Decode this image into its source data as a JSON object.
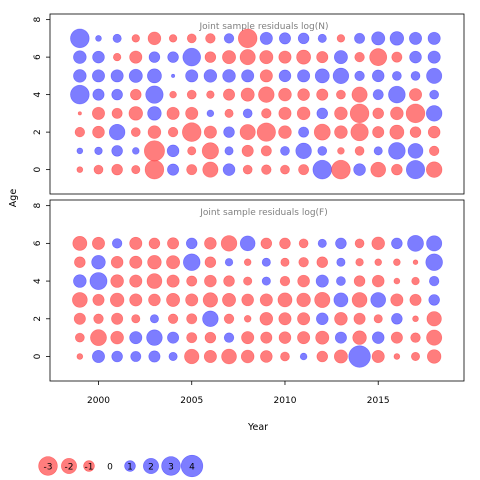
{
  "colors": {
    "negative": "#ff6666",
    "positive": "#6666ff",
    "negative_stroke": "#ff0000",
    "positive_stroke": "#0000ff"
  },
  "xlabel": "Year",
  "ylabel": "Age",
  "x_ticks": [
    "2000",
    "2005",
    "2010",
    "2015"
  ],
  "y_ticks": [
    "0",
    "2",
    "4",
    "6",
    "8"
  ],
  "legend": {
    "values": [
      -3,
      -2,
      -1,
      0,
      1,
      2,
      3,
      4
    ],
    "labels": [
      "-3",
      "-2",
      "-1",
      "0",
      "1",
      "2",
      "3",
      "4"
    ]
  },
  "chart_data": [
    {
      "type": "scatter",
      "title": "Joint sample residuals log(N)",
      "xlabel": "Year",
      "ylabel": "Age",
      "xlim": [
        1997.4,
        2019.6
      ],
      "ylim": [
        -1.3,
        8.3
      ],
      "x": [
        1999,
        2000,
        2001,
        2002,
        2003,
        2004,
        2005,
        2006,
        2007,
        2008,
        2009,
        2010,
        2011,
        2012,
        2013,
        2014,
        2015,
        2016,
        2017,
        2018
      ],
      "ages": [
        0,
        1,
        2,
        3,
        4,
        5,
        6,
        7
      ],
      "residuals_by_age": [
        [
          -0.3,
          -0.7,
          -1.0,
          -0.6,
          -3.0,
          1.1,
          -0.9,
          -2.0,
          1.2,
          -0.7,
          -0.8,
          -0.7,
          -0.9,
          3.0,
          -3.0,
          1.2,
          -1.9,
          -1.0,
          2.9,
          -2.1
        ],
        [
          0.3,
          0.5,
          1.0,
          0.4,
          -3.5,
          1.2,
          -0.6,
          -2.3,
          0.6,
          -1.1,
          -0.9,
          0.7,
          2.1,
          0.7,
          -0.4,
          -0.7,
          0.6,
          2.4,
          1.9,
          -0.8
        ],
        [
          -0.8,
          -1.2,
          2.1,
          -0.7,
          -1.4,
          -0.8,
          -3.0,
          -1.3,
          1.0,
          -2.0,
          -2.9,
          -1.4,
          0.9,
          -2.2,
          -1.4,
          -2.6,
          -1.1,
          -1.7,
          -1.0,
          -1.2
        ],
        [
          -0.1,
          -1.3,
          -0.9,
          -1.6,
          1.6,
          -1.3,
          -1.3,
          0.4,
          -0.6,
          0.7,
          -0.8,
          -1.3,
          -1.4,
          1.0,
          -1.4,
          -3.0,
          -1.0,
          -1.4,
          -3.0,
          2.1
        ],
        [
          3.0,
          1.1,
          1.0,
          -1.0,
          2.6,
          -0.4,
          -0.7,
          -0.5,
          -1.1,
          -1.5,
          -2.1,
          -1.4,
          -1.2,
          -1.1,
          -0.7,
          -2.0,
          0.9,
          2.4,
          -1.3,
          0.7
        ],
        [
          1.4,
          1.3,
          1.3,
          1.5,
          1.7,
          0.1,
          1.3,
          1.4,
          1.4,
          1.3,
          -1.3,
          1.2,
          1.3,
          1.7,
          2.1,
          0.8,
          1.2,
          0.7,
          0.7,
          2.0
        ],
        [
          1.4,
          1.2,
          -0.5,
          -1.3,
          1.0,
          1.0,
          2.7,
          -1.0,
          -1.5,
          -2.0,
          -1.5,
          -1.3,
          -1.7,
          -1.1,
          1.5,
          -0.8,
          -2.5,
          -0.9,
          1.2,
          1.3
        ],
        [
          3.0,
          0.3,
          0.6,
          -0.5,
          -1.4,
          -0.5,
          -0.7,
          -0.8,
          0.8,
          -3.0,
          1.3,
          1.1,
          1.0,
          0.6,
          -0.5,
          0.9,
          1.5,
          1.6,
          1.3,
          1.3
        ]
      ]
    },
    {
      "type": "scatter",
      "title": "Joint sample residuals log(F)",
      "xlabel": "Year",
      "ylabel": "Age",
      "xlim": [
        1997.4,
        2019.6
      ],
      "ylim": [
        -1.3,
        8.3
      ],
      "x": [
        1999,
        2000,
        2001,
        2002,
        2003,
        2004,
        2005,
        2006,
        2007,
        2008,
        2009,
        2010,
        2011,
        2012,
        2013,
        2014,
        2015,
        2016,
        2017,
        2018
      ],
      "ages": [
        0,
        1,
        2,
        3,
        4,
        5,
        6
      ],
      "residuals_by_age": [
        [
          -0.3,
          1.3,
          1.0,
          0.9,
          1.1,
          0.6,
          -1.8,
          -1.3,
          -1.9,
          -1.4,
          -1.2,
          -0.7,
          0.4,
          -1.0,
          -1.5,
          4.0,
          -1.3,
          -0.3,
          -0.6,
          -1.6
        ],
        [
          -0.7,
          -2.2,
          -1.4,
          1.3,
          2.1,
          1.1,
          -0.9,
          -1.0,
          0.8,
          -1.3,
          -1.1,
          -1.2,
          -1.3,
          -1.5,
          1.1,
          -1.6,
          1.2,
          -1.1,
          -0.8,
          -2.0
        ],
        [
          -1.1,
          -0.8,
          -1.1,
          -0.6,
          0.6,
          -0.8,
          -0.9,
          2.1,
          -0.8,
          -0.4,
          -1.4,
          -1.3,
          -1.3,
          1.2,
          -1.4,
          -1.1,
          -0.6,
          1.0,
          -0.3,
          -1.8
        ],
        [
          -1.9,
          -1.1,
          -1.6,
          -1.3,
          -1.2,
          -1.5,
          -1.3,
          -1.8,
          -1.5,
          -1.2,
          -1.3,
          -1.7,
          -1.6,
          -2.0,
          1.7,
          -1.9,
          1.9,
          -1.3,
          -1.1,
          1.0
        ],
        [
          1.4,
          2.5,
          -1.4,
          -1.3,
          -1.9,
          -1.3,
          -0.9,
          -1.2,
          -1.0,
          -0.6,
          0.6,
          -0.8,
          -1.2,
          1.3,
          0.7,
          -1.0,
          -1.2,
          -0.3,
          -0.5,
          0.8
        ],
        [
          -1.0,
          1.6,
          -1.2,
          -1.3,
          -1.6,
          -1.5,
          2.4,
          -1.0,
          0.5,
          -0.4,
          0.6,
          -0.6,
          -0.8,
          -1.0,
          0.6,
          -0.5,
          -0.4,
          -0.4,
          -0.2,
          2.4
        ],
        [
          -1.7,
          -1.3,
          0.8,
          -1.3,
          -1.0,
          -1.1,
          1.0,
          -1.2,
          -2.1,
          1.9,
          -1.0,
          -1.0,
          -0.7,
          0.6,
          1.0,
          -0.7,
          -1.4,
          1.0,
          2.2,
          2.0
        ]
      ]
    }
  ]
}
